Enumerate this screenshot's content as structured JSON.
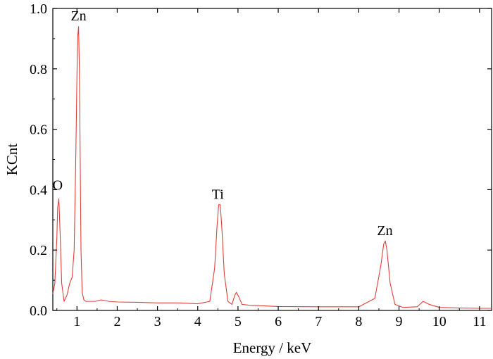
{
  "chart_data": {
    "type": "line",
    "xlabel": "Energy / keV",
    "ylabel": "KCnt",
    "xlim": [
      0.4,
      11.3
    ],
    "ylim": [
      0.0,
      1.0
    ],
    "x_ticks": [
      1,
      2,
      3,
      4,
      5,
      6,
      7,
      8,
      9,
      10,
      11
    ],
    "x_tick_labels": [
      "1",
      "2",
      "3",
      "4",
      "5",
      "6",
      "7",
      "8",
      "9",
      "10",
      "11"
    ],
    "y_ticks": [
      0.0,
      0.2,
      0.4,
      0.6,
      0.8,
      1.0
    ],
    "y_tick_labels": [
      "0.0",
      "0.2",
      "0.4",
      "0.6",
      "0.8",
      "1.0"
    ],
    "grid": false,
    "line_color": "#e0403a",
    "series": [
      {
        "x": [
          0.4,
          0.45,
          0.5,
          0.52,
          0.55,
          0.58,
          0.62,
          0.68,
          0.75,
          0.82,
          0.88,
          0.93,
          0.97,
          1.0,
          1.02,
          1.04,
          1.06,
          1.08,
          1.1,
          1.13,
          1.17,
          1.22,
          1.3,
          1.45,
          1.6,
          1.8,
          2.0,
          2.5,
          3.0,
          3.5,
          4.0,
          4.3,
          4.42,
          4.48,
          4.52,
          4.56,
          4.6,
          4.66,
          4.75,
          4.85,
          4.92,
          4.96,
          5.02,
          5.1,
          5.3,
          6.0,
          7.0,
          8.0,
          8.4,
          8.55,
          8.62,
          8.66,
          8.7,
          8.78,
          8.9,
          9.1,
          9.45,
          9.6,
          9.75,
          10.0,
          10.5,
          11.0,
          11.3
        ],
        "y": [
          0.055,
          0.09,
          0.24,
          0.34,
          0.37,
          0.26,
          0.09,
          0.03,
          0.05,
          0.09,
          0.11,
          0.2,
          0.5,
          0.78,
          0.91,
          0.94,
          0.8,
          0.5,
          0.2,
          0.06,
          0.035,
          0.03,
          0.03,
          0.03,
          0.035,
          0.03,
          0.028,
          0.027,
          0.025,
          0.025,
          0.022,
          0.03,
          0.14,
          0.28,
          0.35,
          0.35,
          0.27,
          0.12,
          0.03,
          0.02,
          0.05,
          0.06,
          0.045,
          0.02,
          0.017,
          0.013,
          0.012,
          0.012,
          0.04,
          0.15,
          0.22,
          0.23,
          0.2,
          0.09,
          0.02,
          0.01,
          0.012,
          0.03,
          0.02,
          0.01,
          0.008,
          0.007,
          0.007
        ]
      }
    ],
    "annotations": [
      {
        "label": "O",
        "x": 0.52,
        "y": 0.4
      },
      {
        "label": "Zn",
        "x": 1.04,
        "y": 0.96
      },
      {
        "label": "Ti",
        "x": 4.5,
        "y": 0.37
      },
      {
        "label": "Zn",
        "x": 8.65,
        "y": 0.25
      }
    ]
  }
}
